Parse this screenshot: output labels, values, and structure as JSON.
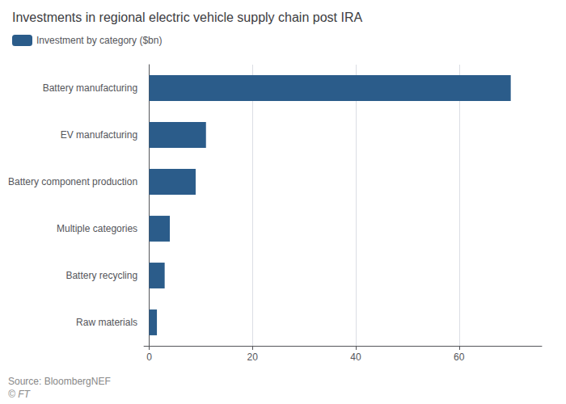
{
  "chart_data": {
    "type": "bar",
    "orientation": "horizontal",
    "title": "Investments in regional electric vehicle supply chain post IRA",
    "annotations": [
      "Source: BloombergNEF",
      "© FT"
    ],
    "categories": [
      "Battery manufacturing",
      "EV manufacturing",
      "Battery component production",
      "Multiple categories",
      "Battery recycling",
      "Raw materials"
    ],
    "series": [
      {
        "name": "Investment by category ($bn)",
        "color": "#2b5c8a",
        "values": [
          70,
          11,
          9,
          4,
          3,
          1.5
        ]
      }
    ],
    "xlim": [
      -1,
      76
    ],
    "xticks": [
      0,
      20,
      40,
      60
    ],
    "grid": true,
    "legend": "upper left"
  }
}
